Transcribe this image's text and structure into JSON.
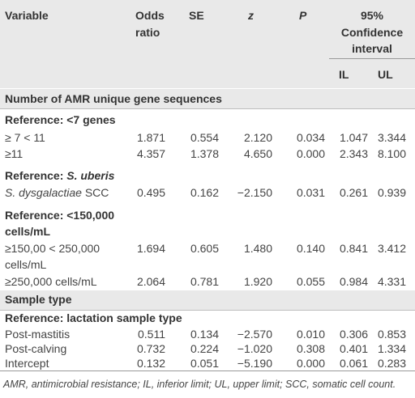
{
  "header": {
    "variable": "Variable",
    "odds_ratio": [
      "Odds",
      "ratio"
    ],
    "se": "SE",
    "z": "z",
    "p": "P",
    "ci": [
      "95%",
      "Confidence",
      "interval"
    ],
    "il": "IL",
    "ul": "UL"
  },
  "sections": {
    "amr": "Number of AMR unique gene sequences",
    "sample_type": "Sample type"
  },
  "refs": {
    "genes": "Reference: <7 genes",
    "uberis_prefix": "Reference: ",
    "uberis_species": "S. uberis",
    "cells": [
      "Reference: <150,000",
      "cells/mL"
    ],
    "lactation": "Reference: lactation sample type"
  },
  "rows": {
    "r7_11": {
      "label": "≥ 7 < 11",
      "or": "1.871",
      "se": "0.554",
      "z": "2.120",
      "p": "0.034",
      "il": "1.047",
      "ul": "3.344"
    },
    "r11": {
      "label": "≥11",
      "or": "4.357",
      "se": "1.378",
      "z": "4.650",
      "p": "0.000",
      "il": "2.343",
      "ul": "8.100"
    },
    "dysg": {
      "label_species": "S. dysgalactiae",
      "label_rest": " SCC",
      "or": "0.495",
      "se": "0.162",
      "z": "−2.150",
      "p": "0.031",
      "il": "0.261",
      "ul": "0.939"
    },
    "c150": {
      "label": [
        "≥150,00 < 250,000",
        "cells/mL"
      ],
      "or": "1.694",
      "se": "0.605",
      "z": "1.480",
      "p": "0.140",
      "il": "0.841",
      "ul": "3.412"
    },
    "c250": {
      "label": "≥250,000 cells/mL",
      "or": "2.064",
      "se": "0.781",
      "z": "1.920",
      "p": "0.055",
      "il": "0.984",
      "ul": "4.331"
    },
    "mastitis": {
      "label": "Post-mastitis",
      "or": "0.511",
      "se": "0.134",
      "z": "−2.570",
      "p": "0.010",
      "il": "0.306",
      "ul": "0.853"
    },
    "calving": {
      "label": "Post-calving",
      "or": "0.732",
      "se": "0.224",
      "z": "−1.020",
      "p": "0.308",
      "il": "0.401",
      "ul": "1.334"
    },
    "intercept": {
      "label": "Intercept",
      "or": "0.132",
      "se": "0.051",
      "z": "−5.190",
      "p": "0.000",
      "il": "0.061",
      "ul": "0.283"
    }
  },
  "footnote": "AMR, antimicrobial resistance; IL, inferior limit; UL, upper limit; SCC, somatic cell count."
}
